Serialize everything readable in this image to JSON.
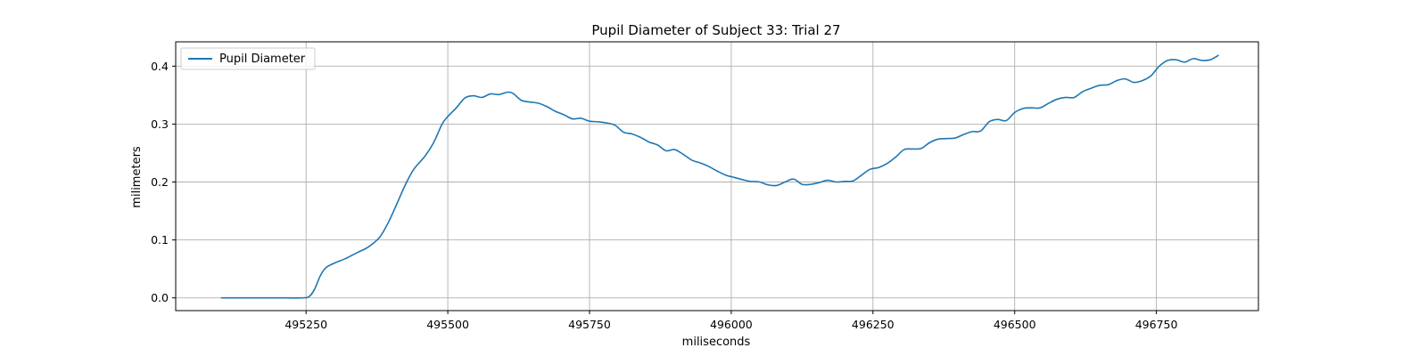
{
  "chart_data": {
    "type": "line",
    "title": "Pupil Diameter of Subject 33: Trial 27",
    "xlabel": "miliseconds",
    "ylabel": "milimeters",
    "xlim": [
      495020,
      496930
    ],
    "ylim": [
      -0.022,
      0.442
    ],
    "xticks": [
      495250,
      495500,
      495750,
      496000,
      496250,
      496500,
      496750
    ],
    "yticks": [
      0.0,
      0.1,
      0.2,
      0.3,
      0.4
    ],
    "ytick_labels": [
      "0.0",
      "0.1",
      "0.2",
      "0.3",
      "0.4"
    ],
    "grid": true,
    "legend_position": "top-left",
    "series": [
      {
        "name": "Pupil Diameter",
        "color": "#1f77b4",
        "x": [
          495100,
          495150,
          495200,
          495240,
          495255,
          495265,
          495275,
          495285,
          495300,
          495320,
          495340,
          495360,
          495380,
          495395,
          495410,
          495425,
          495440,
          495460,
          495475,
          495490,
          495500,
          495515,
          495530,
          495545,
          495560,
          495575,
          495590,
          495605,
          495615,
          495630,
          495645,
          495660,
          495675,
          495690,
          495705,
          495720,
          495735,
          495750,
          495765,
          495780,
          495795,
          495810,
          495825,
          495840,
          495855,
          495870,
          495885,
          495900,
          495915,
          495930,
          495945,
          495960,
          495975,
          495990,
          496005,
          496020,
          496035,
          496050,
          496065,
          496080,
          496095,
          496110,
          496125,
          496140,
          496155,
          496170,
          496185,
          496200,
          496215,
          496230,
          496245,
          496260,
          496275,
          496290,
          496305,
          496320,
          496335,
          496350,
          496365,
          496380,
          496395,
          496410,
          496425,
          496440,
          496455,
          496470,
          496485,
          496500,
          496515,
          496530,
          496545,
          496560,
          496575,
          496590,
          496605,
          496620,
          496635,
          496650,
          496665,
          496680,
          496695,
          496710,
          496725,
          496740,
          496755,
          496770,
          496785,
          496800,
          496815,
          496830,
          496845,
          496860
        ],
        "y": [
          0.0,
          0.0,
          0.0,
          0.0,
          0.002,
          0.015,
          0.038,
          0.052,
          0.06,
          0.068,
          0.078,
          0.088,
          0.105,
          0.13,
          0.162,
          0.195,
          0.222,
          0.245,
          0.268,
          0.3,
          0.313,
          0.328,
          0.345,
          0.349,
          0.346,
          0.352,
          0.351,
          0.355,
          0.353,
          0.341,
          0.338,
          0.336,
          0.33,
          0.322,
          0.316,
          0.309,
          0.31,
          0.305,
          0.304,
          0.302,
          0.298,
          0.286,
          0.283,
          0.277,
          0.269,
          0.264,
          0.254,
          0.256,
          0.248,
          0.238,
          0.233,
          0.227,
          0.219,
          0.212,
          0.208,
          0.204,
          0.201,
          0.2,
          0.195,
          0.194,
          0.2,
          0.205,
          0.196,
          0.196,
          0.199,
          0.203,
          0.2,
          0.201,
          0.202,
          0.212,
          0.222,
          0.225,
          0.232,
          0.243,
          0.256,
          0.257,
          0.258,
          0.268,
          0.274,
          0.275,
          0.276,
          0.282,
          0.287,
          0.288,
          0.304,
          0.308,
          0.306,
          0.32,
          0.327,
          0.328,
          0.328,
          0.336,
          0.343,
          0.346,
          0.346,
          0.356,
          0.362,
          0.367,
          0.368,
          0.375,
          0.378,
          0.372,
          0.375,
          0.383,
          0.4,
          0.41,
          0.411,
          0.407,
          0.413,
          0.41,
          0.411,
          0.419
        ]
      }
    ]
  }
}
